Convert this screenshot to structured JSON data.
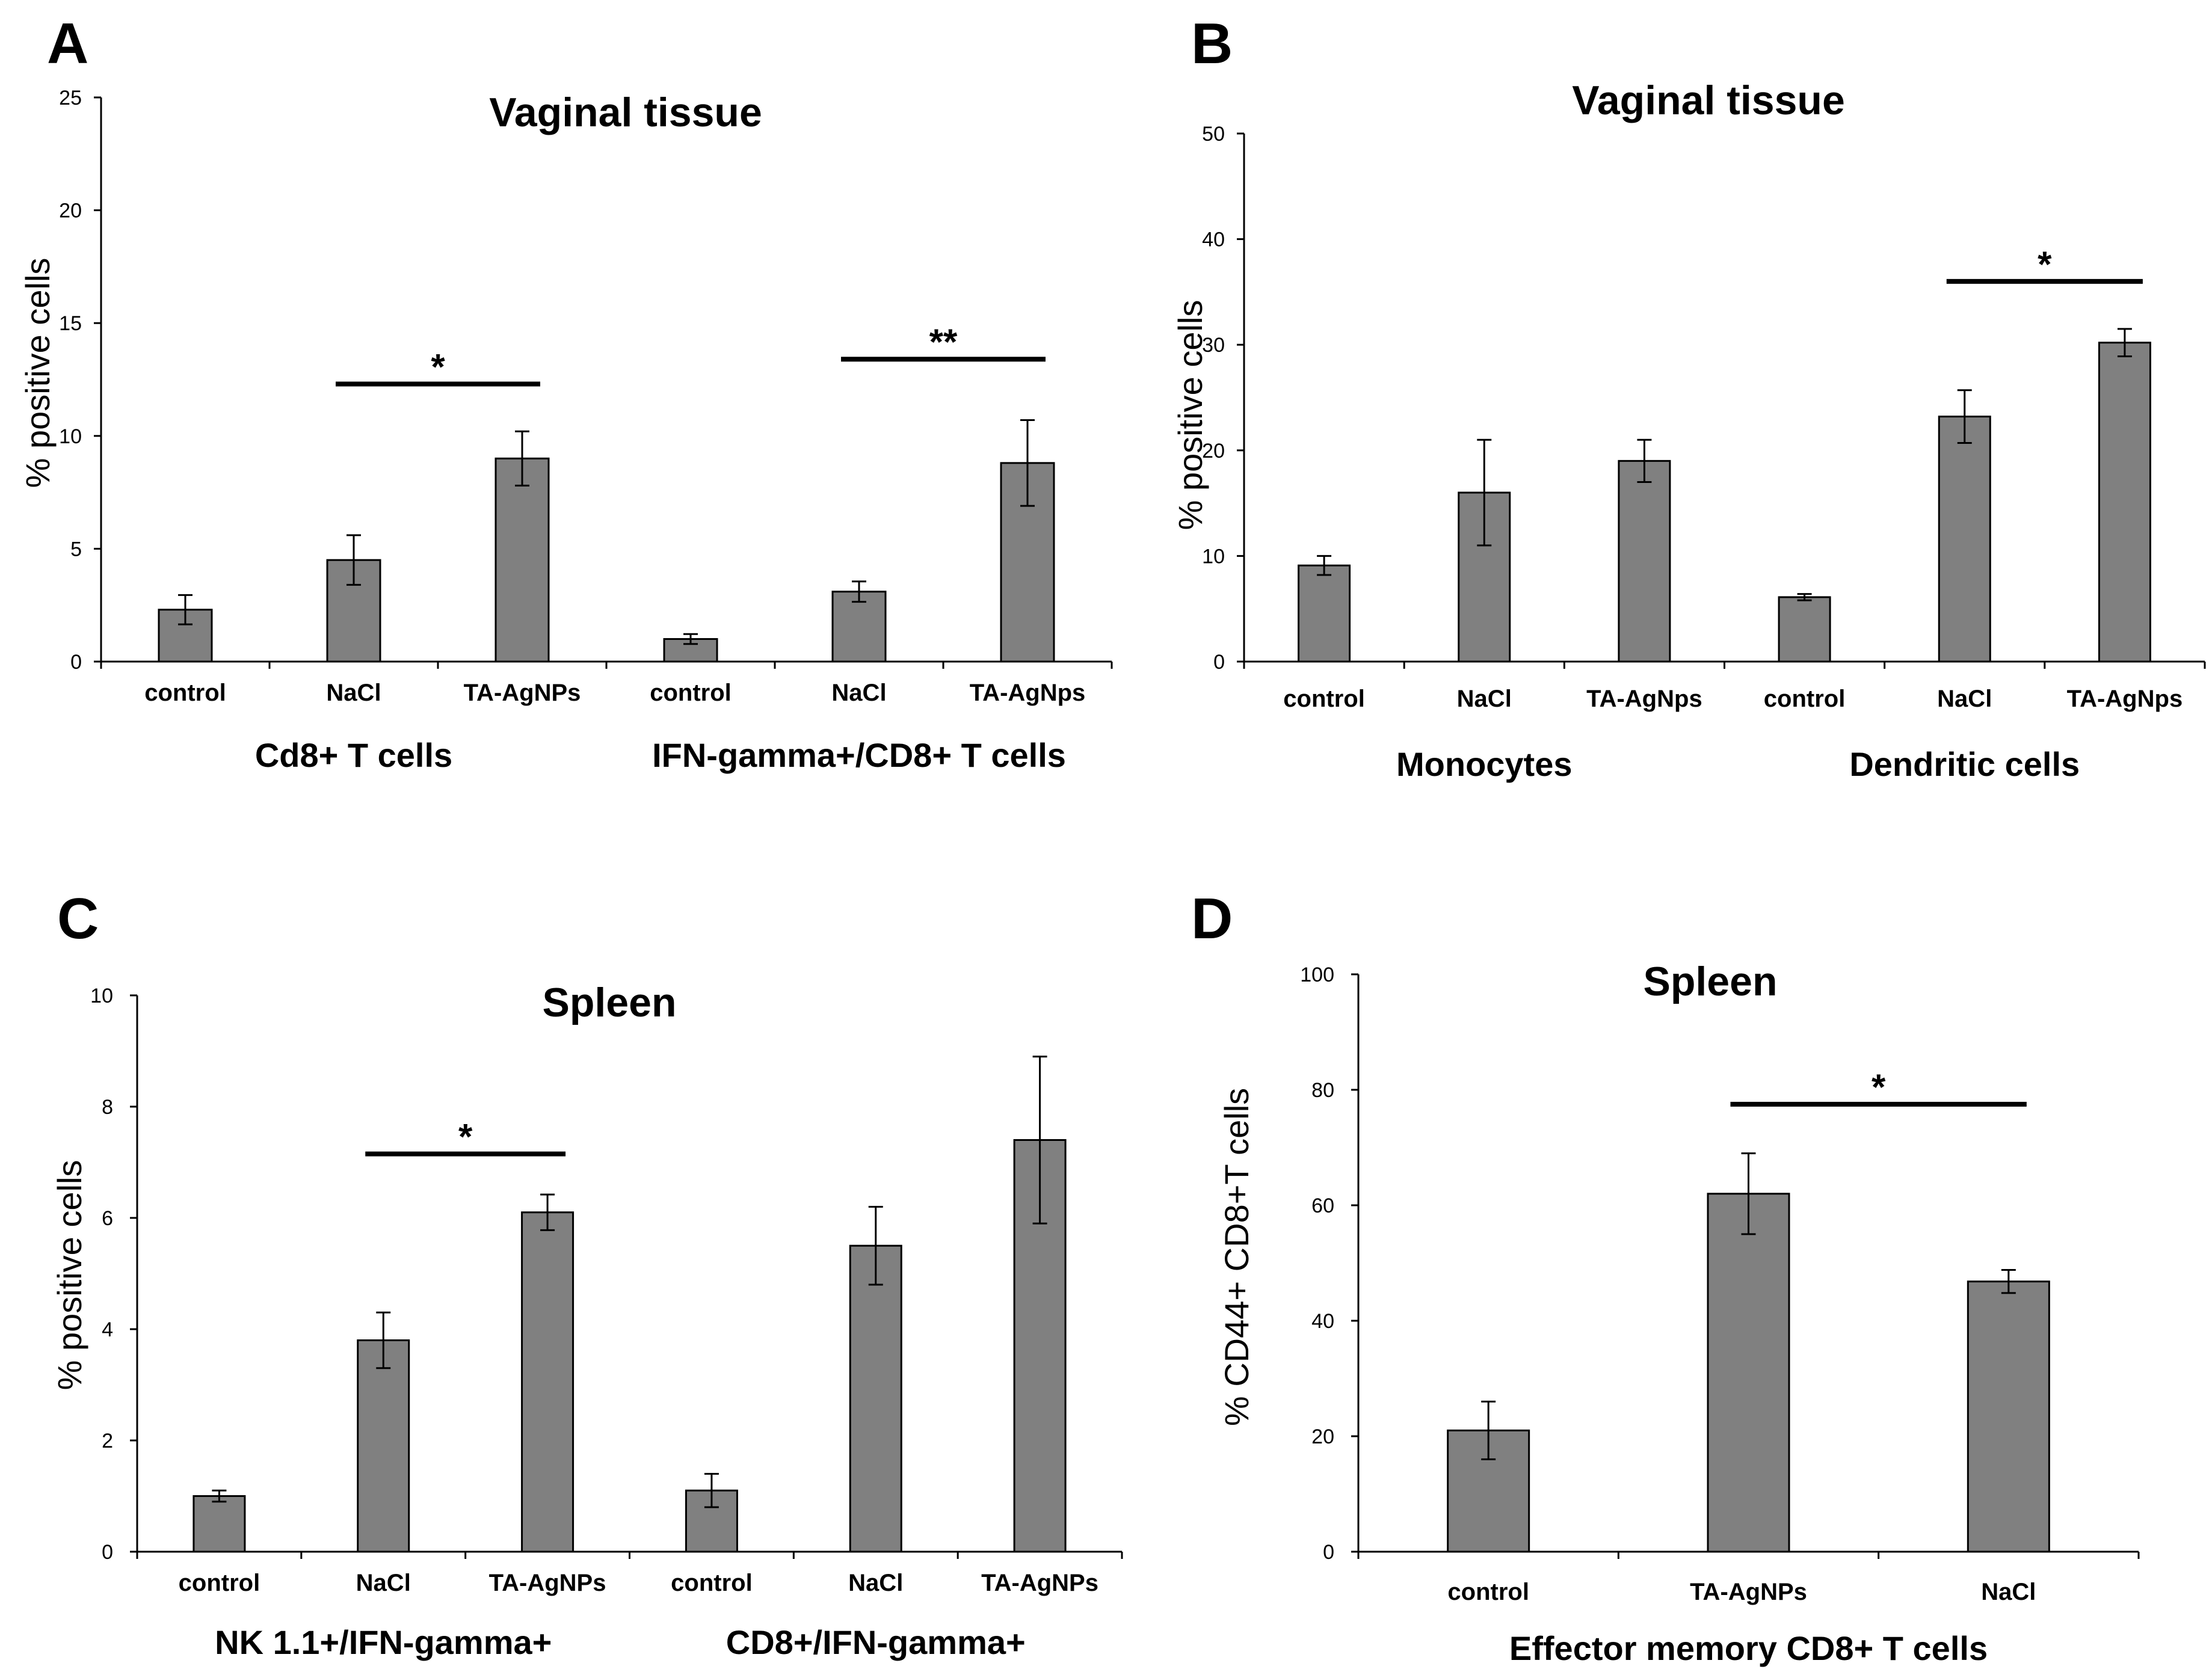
{
  "chart_data": [
    {
      "panel": "A",
      "type": "bar",
      "title": "Vaginal tissue",
      "ylabel": "% positive cells",
      "ylim": [
        0,
        25
      ],
      "yticks": [
        0,
        5,
        10,
        15,
        20,
        25
      ],
      "categories": [
        "control",
        "NaCl",
        "TA-AgNPs",
        "control",
        "NaCl",
        "TA-AgNps"
      ],
      "values": [
        2.3,
        4.5,
        9.0,
        1.0,
        3.1,
        8.8
      ],
      "errors": [
        0.65,
        1.1,
        1.2,
        0.22,
        0.45,
        1.9
      ],
      "groups": [
        {
          "label": "Cd8+ T cells",
          "from": 0,
          "to": 2
        },
        {
          "label": "IFN-gamma+/CD8+ T cells",
          "from": 3,
          "to": 5
        }
      ],
      "significance": [
        {
          "from": 1,
          "to": 2,
          "label": "*",
          "y": 12.3
        },
        {
          "from": 4,
          "to": 5,
          "label": "**",
          "y": 13.4
        }
      ]
    },
    {
      "panel": "B",
      "type": "bar",
      "title": "Vaginal tissue",
      "ylabel": "% positive cells",
      "ylim": [
        0,
        50
      ],
      "yticks": [
        0,
        10,
        20,
        30,
        40,
        50
      ],
      "categories": [
        "control",
        "NaCl",
        "TA-AgNps",
        "control",
        "NaCl",
        "TA-AgNps"
      ],
      "values": [
        9.1,
        16.0,
        19.0,
        6.1,
        23.2,
        30.2
      ],
      "errors": [
        0.9,
        5.0,
        2.0,
        0.3,
        2.5,
        1.3
      ],
      "groups": [
        {
          "label": "Monocytes",
          "from": 0,
          "to": 2
        },
        {
          "label": "Dendritic cells",
          "from": 3,
          "to": 5
        }
      ],
      "significance": [
        {
          "from": 4,
          "to": 5,
          "label": "*",
          "y": 36.0
        }
      ]
    },
    {
      "panel": "C",
      "type": "bar",
      "title": "Spleen",
      "ylabel": "% positive cells",
      "ylim": [
        0,
        10
      ],
      "yticks": [
        0,
        2,
        4,
        6,
        8,
        10
      ],
      "categories": [
        "control",
        "NaCl",
        "TA-AgNPs",
        "control",
        "NaCl",
        "TA-AgNPs"
      ],
      "values": [
        1.0,
        3.8,
        6.1,
        1.1,
        5.5,
        7.4
      ],
      "errors": [
        0.1,
        0.5,
        0.32,
        0.3,
        0.7,
        1.5
      ],
      "groups": [
        {
          "label": "NK 1.1+/IFN-gamma+",
          "from": 0,
          "to": 2
        },
        {
          "label": "CD8+/IFN-gamma+",
          "from": 3,
          "to": 5
        }
      ],
      "significance": [
        {
          "from": 1,
          "to": 2,
          "label": "*",
          "y": 7.15
        }
      ]
    },
    {
      "panel": "D",
      "type": "bar",
      "title": "Spleen",
      "ylabel": "% CD44+ CD8+T cells",
      "ylim": [
        0,
        100
      ],
      "yticks": [
        0,
        20,
        40,
        60,
        80,
        100
      ],
      "categories": [
        "control",
        "TA-AgNPs",
        "NaCl"
      ],
      "values": [
        21.0,
        62.0,
        46.8
      ],
      "errors": [
        5.0,
        7.0,
        2.0
      ],
      "groups": [
        {
          "label": "Effector memory CD8+ T cells",
          "from": 0,
          "to": 2
        }
      ],
      "significance": [
        {
          "from": 1,
          "to": 2,
          "label": "*",
          "y": 77.5
        }
      ]
    }
  ]
}
